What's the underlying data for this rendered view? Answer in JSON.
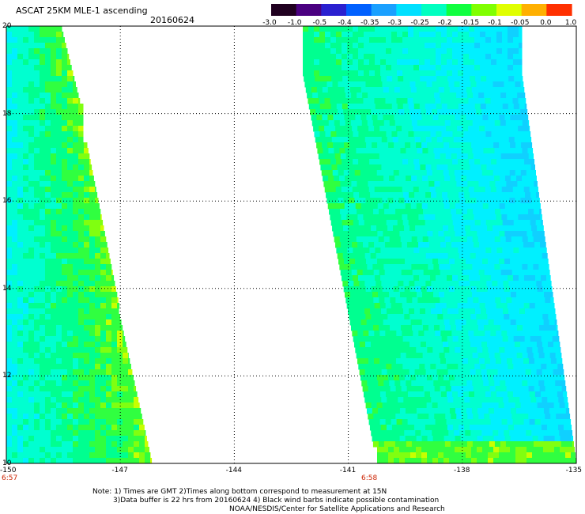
{
  "header": {
    "title": "ASCAT 25KM MLE-1 ascending",
    "date": "20160624"
  },
  "colorbar": {
    "labels": [
      "-3.0",
      "-1.0",
      "-0.5",
      "-0.4",
      "-0.35",
      "-0.3",
      "-0.25",
      "-0.2",
      "-0.15",
      "-0.1",
      "-0.05",
      "0.0",
      "1.0"
    ],
    "colors": [
      "#200020",
      "#4a0080",
      "#2a20d0",
      "#0060ff",
      "#1aa0ff",
      "#00e0ff",
      "#00ffc0",
      "#10ff40",
      "#80ff00",
      "#e0ff00",
      "#ffb000",
      "#ff3000"
    ]
  },
  "map": {
    "lon_range": [
      -150,
      -135
    ],
    "lat_range": [
      10,
      20
    ],
    "x_ticks": [
      "-150",
      "-147",
      "-144",
      "-141",
      "-138",
      "-135"
    ],
    "y_ticks": [
      "20",
      "18",
      "16",
      "14",
      "12",
      "10"
    ],
    "pass_times": [
      "6:57",
      "6:58"
    ]
  },
  "footer": {
    "note_line1": "Note: 1) Times are GMT 2)Times along bottom correspond to measurement at 15N",
    "note_line2": "3)Data buffer is 22 hrs from 20160624 4) Black wind barbs indicate possible contamination",
    "note_line3": "NOAA/NESDIS/Center for Satellite Applications and Research"
  }
}
